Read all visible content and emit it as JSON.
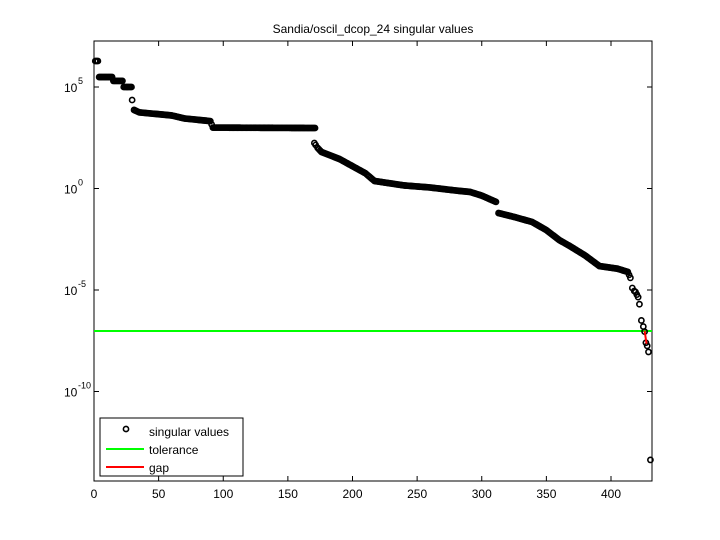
{
  "chart_data": {
    "type": "scatter",
    "title": "Sandia/oscil_dcop_24 singular values",
    "xlabel": "",
    "ylabel": "",
    "xscale": "linear",
    "yscale": "log",
    "xlim": [
      0,
      431
    ],
    "ylim_log10": [
      -14.5,
      7.2
    ],
    "xticks": [
      0,
      50,
      100,
      150,
      200,
      250,
      300,
      350,
      400
    ],
    "xtick_labels": [
      "0",
      "50",
      "100",
      "150",
      "200",
      "250",
      "300",
      "350",
      "400"
    ],
    "yticks_log10": [
      5,
      0,
      -5,
      -10
    ],
    "ytick_labels": [
      {
        "base": "10",
        "exp": "5"
      },
      {
        "base": "10",
        "exp": "0"
      },
      {
        "base": "10",
        "exp": "-5"
      },
      {
        "base": "10",
        "exp": "-10"
      }
    ],
    "grid": false,
    "legend": {
      "position": "lower left",
      "entries": [
        {
          "label": "singular values",
          "style": "marker-circle",
          "color": "#000000"
        },
        {
          "label": "tolerance",
          "style": "line",
          "color": "#00ff00"
        },
        {
          "label": "gap",
          "style": "line",
          "color": "#ff0000"
        }
      ]
    },
    "series": [
      {
        "name": "singular values",
        "color": "#000000",
        "marker": "circle-open",
        "points_log10_anchor": [
          [
            1,
            6.28
          ],
          [
            3,
            6.28
          ],
          [
            4,
            5.49
          ],
          [
            14,
            5.49
          ],
          [
            15,
            5.3
          ],
          [
            22,
            5.3
          ],
          [
            23,
            5.0
          ],
          [
            29,
            5.0
          ],
          [
            29.5,
            4.36
          ],
          [
            31,
            3.87
          ],
          [
            35,
            3.75
          ],
          [
            60,
            3.6
          ],
          [
            70,
            3.45
          ],
          [
            90,
            3.32
          ],
          [
            92,
            3.0
          ],
          [
            171,
            2.98
          ],
          [
            170.5,
            2.24
          ],
          [
            173,
            2.0
          ],
          [
            176,
            1.8
          ],
          [
            190,
            1.45
          ],
          [
            200,
            1.1
          ],
          [
            210,
            0.75
          ],
          [
            217,
            0.37
          ],
          [
            240,
            0.15
          ],
          [
            260,
            0.05
          ],
          [
            280,
            -0.1
          ],
          [
            291,
            -0.17
          ],
          [
            300,
            -0.35
          ],
          [
            311,
            -0.66
          ],
          [
            313,
            -1.21
          ],
          [
            325,
            -1.4
          ],
          [
            339,
            -1.65
          ],
          [
            350,
            -2.05
          ],
          [
            360,
            -2.54
          ],
          [
            368,
            -2.83
          ],
          [
            380,
            -3.3
          ],
          [
            391,
            -3.82
          ],
          [
            405,
            -3.95
          ],
          [
            413,
            -4.11
          ],
          [
            415,
            -4.4
          ],
          [
            416.5,
            -4.9
          ],
          [
            418,
            -5.05
          ],
          [
            419,
            -5.1
          ],
          [
            421,
            -5.35
          ],
          [
            422,
            -5.7
          ],
          [
            423.5,
            -6.5
          ],
          [
            425,
            -6.8
          ],
          [
            426,
            -7.05
          ],
          [
            427,
            -7.6
          ],
          [
            428,
            -7.75
          ],
          [
            429,
            -8.05
          ],
          [
            430.5,
            -13.37
          ]
        ]
      }
    ],
    "tolerance": {
      "name": "tolerance",
      "color": "#00ff00",
      "log10_value": -7.02
    },
    "gap": {
      "name": "gap",
      "color": "#ff0000",
      "from": [
        426,
        -7.0
      ],
      "to": [
        427.5,
        -7.65
      ]
    }
  },
  "figure": {
    "title": "Sandia/oscil_dcop_24 singular values",
    "legend_labels": [
      "singular values",
      "tolerance",
      "gap"
    ]
  }
}
